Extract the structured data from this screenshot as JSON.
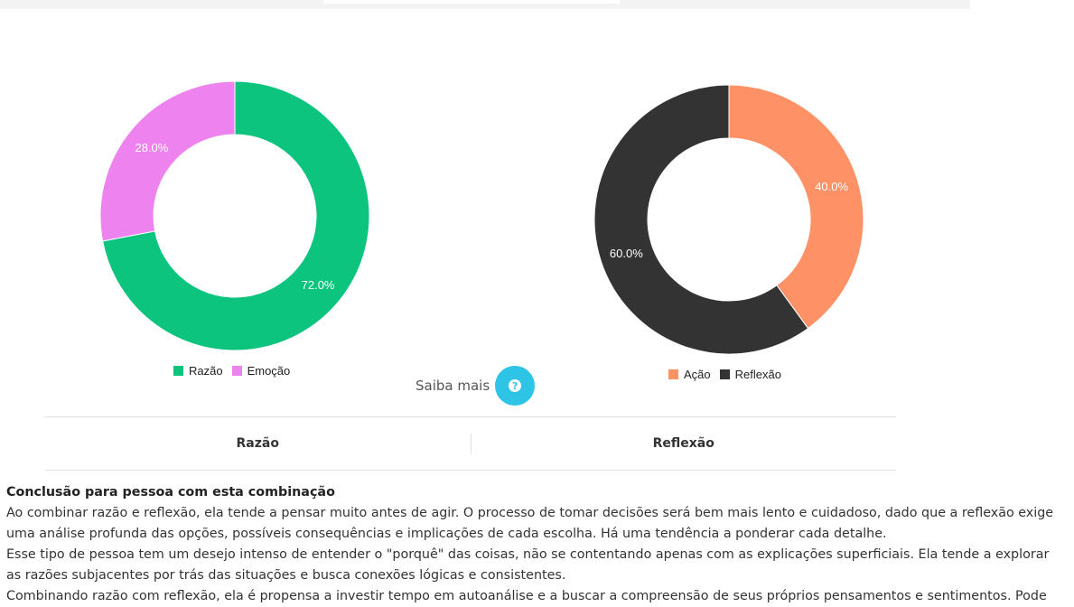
{
  "colors": {
    "razao": "#0dc47f",
    "emocao": "#ee82ee",
    "acao": "#ff9166",
    "reflexao": "#333333",
    "help_button": "#2ec4e6"
  },
  "chart_data": [
    {
      "type": "pie",
      "style": "donut",
      "categories": [
        "Razão",
        "Emoção"
      ],
      "values": [
        72.0,
        28.0
      ],
      "labels": [
        "72.0%",
        "28.0%"
      ],
      "colors": [
        "#0dc47f",
        "#ee82ee"
      ],
      "legend_position": "bottom"
    },
    {
      "type": "pie",
      "style": "donut",
      "categories": [
        "Ação",
        "Reflexão"
      ],
      "values": [
        40.0,
        60.0
      ],
      "labels": [
        "40.0%",
        "60.0%"
      ],
      "colors": [
        "#ff9166",
        "#333333"
      ],
      "legend_position": "bottom"
    }
  ],
  "saiba_mais": {
    "label": "Saiba mais",
    "icon": "question-icon",
    "icon_glyph": "?"
  },
  "tabs": [
    {
      "label": "Razão"
    },
    {
      "label": "Reflexão"
    }
  ],
  "conclusion": {
    "title": "Conclusão para pessoa com esta combinação",
    "paragraphs": [
      "Ao combinar razão e reflexão, ela tende a pensar muito antes de agir. O processo de tomar decisões será bem mais lento e cuidadoso, dado que a reflexão exige uma análise profunda das opções, possíveis consequências e implicações de cada escolha. Há uma tendência a ponderar cada detalhe.",
      "Esse tipo de pessoa tem um desejo intenso de entender o \"porquê\" das coisas, não se contentando apenas com as explicações superficiais. Ela tende a explorar as razões subjacentes por trás das situações e busca conexões lógicas e consistentes.",
      "Combinando razão com reflexão, ela é propensa a investir tempo em autoanálise e a buscar a compreensão de seus próprios pensamentos e sentimentos. Pode"
    ]
  }
}
